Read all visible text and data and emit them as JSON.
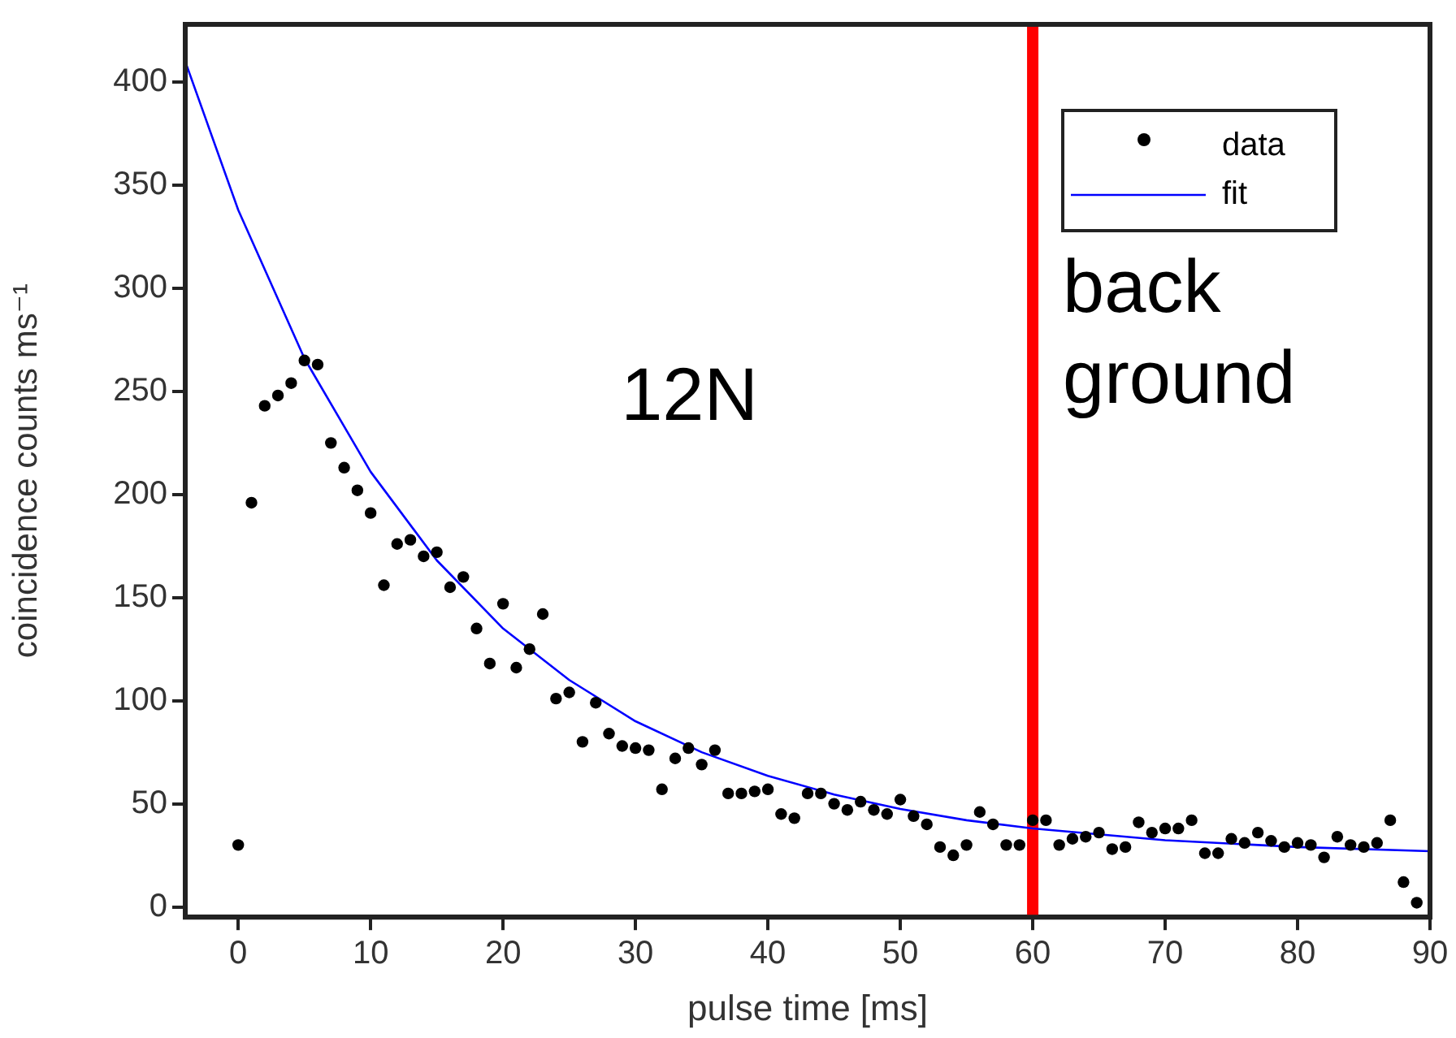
{
  "chart_data": {
    "type": "scatter",
    "xlabel": "pulse time [ms]",
    "ylabel": "coincidence counts ms⁻¹",
    "xlim": [
      -4,
      90
    ],
    "ylim": [
      -5,
      428
    ],
    "xticks": [
      0,
      10,
      20,
      30,
      40,
      50,
      60,
      70,
      80,
      90
    ],
    "yticks": [
      0,
      50,
      100,
      150,
      200,
      250,
      300,
      350,
      400
    ],
    "grid": false,
    "legend": "top right",
    "series": [
      {
        "name": "data",
        "type": "scatter",
        "marker": "circle",
        "color": "#000000",
        "x": [
          0,
          1,
          2,
          3,
          4,
          5,
          6,
          7,
          8,
          9,
          10,
          11,
          12,
          13,
          14,
          15,
          16,
          17,
          18,
          19,
          20,
          21,
          22,
          23,
          24,
          25,
          26,
          27,
          28,
          29,
          30,
          31,
          32,
          33,
          34,
          35,
          36,
          37,
          38,
          39,
          40,
          41,
          42,
          43,
          44,
          45,
          46,
          47,
          48,
          49,
          50,
          51,
          52,
          53,
          54,
          55,
          56,
          57,
          58,
          59,
          60,
          61,
          62,
          63,
          64,
          65,
          66,
          67,
          68,
          69,
          70,
          71,
          72,
          73,
          74,
          75,
          76,
          77,
          78,
          79,
          80,
          81,
          82,
          83,
          84,
          85,
          86,
          87,
          88,
          89
        ],
        "values": [
          30,
          196,
          243,
          248,
          254,
          265,
          263,
          225,
          213,
          202,
          191,
          156,
          176,
          178,
          170,
          172,
          155,
          160,
          135,
          118,
          147,
          116,
          125,
          142,
          101,
          104,
          80,
          99,
          84,
          78,
          77,
          76,
          57,
          72,
          77,
          69,
          76,
          55,
          55,
          56,
          57,
          45,
          43,
          55,
          55,
          50,
          47,
          51,
          47,
          45,
          52,
          44,
          40,
          29,
          25,
          30,
          46,
          40,
          30,
          30,
          42,
          42,
          30,
          33,
          34,
          36,
          28,
          29,
          41,
          36,
          38,
          38,
          42,
          26,
          26,
          33,
          31,
          36,
          32,
          29,
          31,
          30,
          24,
          34,
          30,
          29,
          31,
          42,
          12,
          2
        ]
      },
      {
        "name": "fit",
        "type": "line",
        "marker": "none",
        "color": "#0000ff",
        "x": [
          -4,
          0,
          5,
          10,
          15,
          20,
          25,
          30,
          35,
          40,
          45,
          50,
          55,
          60,
          70,
          80,
          90
        ],
        "values": [
          410,
          338,
          266,
          211,
          168,
          135,
          110,
          90,
          75,
          63.5,
          54.5,
          47.5,
          42,
          38,
          32.3,
          29,
          27
        ]
      }
    ],
    "ref_lines": [
      {
        "axis": "x",
        "value": 60,
        "color": "#ff0000"
      }
    ],
    "annotations": [
      "12N",
      "back ground"
    ]
  }
}
